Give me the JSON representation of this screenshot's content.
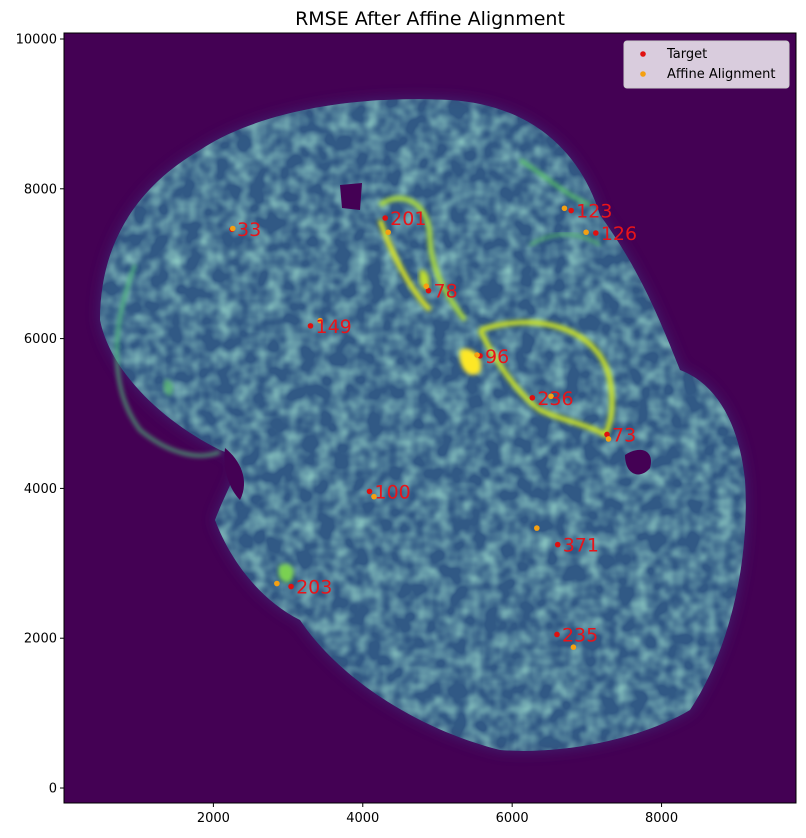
{
  "chart_data": {
    "type": "scatter",
    "title": "RMSE After Affine Alignment",
    "xlabel": "",
    "ylabel": "",
    "xlim": [
      0,
      9800
    ],
    "ylim": [
      -200,
      10080
    ],
    "x_ticks": [
      2000,
      4000,
      6000,
      8000
    ],
    "y_ticks": [
      0,
      2000,
      4000,
      6000,
      8000,
      10000
    ],
    "grid": false,
    "legend_position": "top-right",
    "background": "tissue intensity image (viridis colormap)",
    "series": [
      {
        "name": "Target",
        "color": "#e01010",
        "points": [
          {
            "x": 2250,
            "y": 7460,
            "label": "33"
          },
          {
            "x": 4300,
            "y": 7610,
            "label": "201"
          },
          {
            "x": 6790,
            "y": 7710,
            "label": "123"
          },
          {
            "x": 7120,
            "y": 7410,
            "label": "126"
          },
          {
            "x": 4880,
            "y": 6640,
            "label": "78"
          },
          {
            "x": 3300,
            "y": 6170,
            "label": "149"
          },
          {
            "x": 5570,
            "y": 5770,
            "label": "96"
          },
          {
            "x": 6270,
            "y": 5210,
            "label": "236"
          },
          {
            "x": 7270,
            "y": 4720,
            "label": "73"
          },
          {
            "x": 4090,
            "y": 3960,
            "label": "100"
          },
          {
            "x": 6610,
            "y": 3250,
            "label": "371"
          },
          {
            "x": 3040,
            "y": 2690,
            "label": "203"
          },
          {
            "x": 6600,
            "y": 2050,
            "label": "235"
          }
        ]
      },
      {
        "name": "Affine Alignment",
        "color": "#f5a011",
        "points": [
          {
            "x": 2260,
            "y": 7470
          },
          {
            "x": 4340,
            "y": 7420
          },
          {
            "x": 6700,
            "y": 7740
          },
          {
            "x": 6990,
            "y": 7420
          },
          {
            "x": 4850,
            "y": 6700
          },
          {
            "x": 3430,
            "y": 6240
          },
          {
            "x": 5530,
            "y": 5780
          },
          {
            "x": 6520,
            "y": 5230
          },
          {
            "x": 7290,
            "y": 4660
          },
          {
            "x": 4150,
            "y": 3890
          },
          {
            "x": 6330,
            "y": 3470
          },
          {
            "x": 2850,
            "y": 2730
          },
          {
            "x": 6820,
            "y": 1880
          }
        ]
      }
    ]
  }
}
